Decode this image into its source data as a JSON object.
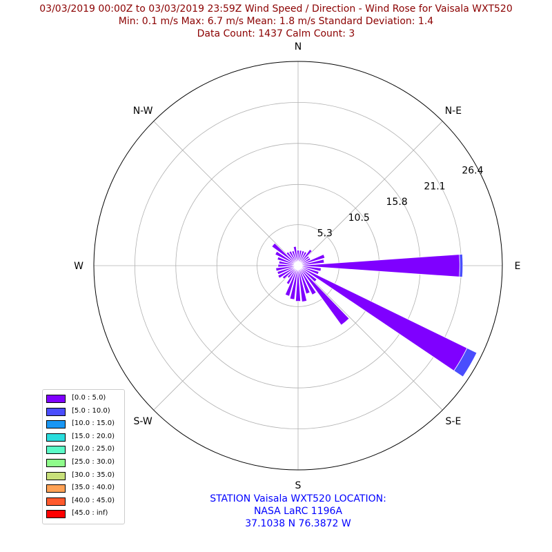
{
  "header": {
    "line1": "03/03/2019 00:00Z to 03/03/2019 23:59Z Wind Speed / Direction - Wind Rose for Vaisala WXT520",
    "line2": "Min: 0.1 m/s   Max: 6.7 m/s   Mean: 1.8 m/s  Standard Deviation: 1.4",
    "line3": "Data Count: 1437  Calm Count:  3",
    "color": "#8b0000"
  },
  "station": {
    "line1": "STATION Vaisala WXT520 LOCATION:",
    "line2": "NASA LaRC 1196A",
    "line3": "37.1038 N 76.3872 W",
    "color": "#0000ff"
  },
  "chart_data": {
    "type": "windrose",
    "radial_max": 26.4,
    "radial_ticks": [
      "5.3",
      "10.5",
      "15.8",
      "21.1",
      "26.4"
    ],
    "radial_tick_values": [
      5.3,
      10.5,
      15.8,
      21.1,
      26.4
    ],
    "direction_labels": [
      "N",
      "N-E",
      "E",
      "S-E",
      "S",
      "S-W",
      "W",
      "N-W"
    ],
    "sector_count": 36,
    "bins": [
      {
        "label": "[0.0 : 5.0)",
        "color": "#7f00ff"
      },
      {
        "label": "[5.0 : 10.0)",
        "color": "#4a4dfd"
      },
      {
        "label": "[10.0 : 15.0)",
        "color": "#1996f3"
      },
      {
        "label": "[15.0 : 20.0)",
        "color": "#2adddd"
      },
      {
        "label": "[20.0 : 25.0)",
        "color": "#5bfbc7"
      },
      {
        "label": "[25.0 : 30.0)",
        "color": "#8ffc8b"
      },
      {
        "label": "[30.0 : 35.0)",
        "color": "#c8e07a"
      },
      {
        "label": "[35.0 : 40.0)",
        "color": "#ffa256"
      },
      {
        "label": "[40.0 : 45.0)",
        "color": "#ff5a2d"
      },
      {
        "label": "[45.0 : inf)",
        "color": "#ff0000"
      }
    ],
    "sectors": [
      {
        "direction": 0,
        "values": [
          2.0,
          0
        ]
      },
      {
        "direction": 10,
        "values": [
          2.0,
          0
        ]
      },
      {
        "direction": 20,
        "values": [
          2.0,
          0
        ]
      },
      {
        "direction": 30,
        "values": [
          2.0,
          0
        ]
      },
      {
        "direction": 40,
        "values": [
          2.6,
          0
        ]
      },
      {
        "direction": 50,
        "values": [
          1.8,
          0
        ]
      },
      {
        "direction": 60,
        "values": [
          1.8,
          0
        ]
      },
      {
        "direction": 70,
        "values": [
          3.6,
          0
        ]
      },
      {
        "direction": 80,
        "values": [
          3.4,
          0
        ]
      },
      {
        "direction": 90,
        "values": [
          20.9,
          0.4
        ]
      },
      {
        "direction": 100,
        "values": [
          3.0,
          0
        ]
      },
      {
        "direction": 110,
        "values": [
          2.8,
          0
        ]
      },
      {
        "direction": 120,
        "values": [
          24.3,
          1.4
        ]
      },
      {
        "direction": 130,
        "values": [
          3.0,
          0
        ]
      },
      {
        "direction": 140,
        "values": [
          9.5,
          0
        ]
      },
      {
        "direction": 150,
        "values": [
          4.2,
          0
        ]
      },
      {
        "direction": 160,
        "values": [
          3.8,
          0
        ]
      },
      {
        "direction": 170,
        "values": [
          4.7,
          0
        ]
      },
      {
        "direction": 180,
        "values": [
          4.6,
          0
        ]
      },
      {
        "direction": 190,
        "values": [
          4.4,
          0
        ]
      },
      {
        "direction": 200,
        "values": [
          4.1,
          0
        ]
      },
      {
        "direction": 210,
        "values": [
          2.7,
          0
        ]
      },
      {
        "direction": 220,
        "values": [
          2.0,
          0
        ]
      },
      {
        "direction": 230,
        "values": [
          2.5,
          0
        ]
      },
      {
        "direction": 240,
        "values": [
          2.9,
          0
        ]
      },
      {
        "direction": 250,
        "values": [
          2.8,
          0
        ]
      },
      {
        "direction": 260,
        "values": [
          2.9,
          0
        ]
      },
      {
        "direction": 270,
        "values": [
          2.6,
          0
        ]
      },
      {
        "direction": 280,
        "values": [
          2.5,
          0
        ]
      },
      {
        "direction": 290,
        "values": [
          2.8,
          0
        ]
      },
      {
        "direction": 300,
        "values": [
          3.3,
          0
        ]
      },
      {
        "direction": 310,
        "values": [
          4.2,
          0
        ]
      },
      {
        "direction": 320,
        "values": [
          2.2,
          0
        ]
      },
      {
        "direction": 330,
        "values": [
          2.1,
          0
        ]
      },
      {
        "direction": 340,
        "values": [
          2.0,
          0
        ]
      },
      {
        "direction": 350,
        "values": [
          2.5,
          0
        ]
      }
    ]
  }
}
